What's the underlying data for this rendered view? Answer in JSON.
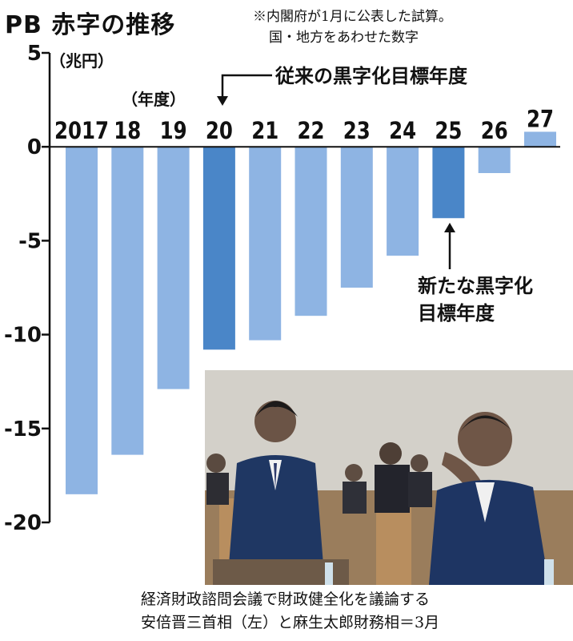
{
  "title": "PB 赤字の推移",
  "note_lines": [
    "※内閣府が1月に公表した試算。",
    "国・地方をあわせた数字"
  ],
  "unit_label": "（兆円）",
  "fiscal_year_label": "（年度）",
  "annotations": {
    "old_target": "従来の黒字化目標年度",
    "new_target_line1": "新たな黒字化",
    "new_target_line2": "目標年度"
  },
  "caption_lines": [
    "経済財政諮問会議で財政健全化を議論する",
    "安倍晋三首相（左）と麻生太郎財務相＝3月"
  ],
  "colors": {
    "bar": "#8eb4e3",
    "highlight": "#4a86c8",
    "axis": "#111111"
  },
  "chart_data": {
    "type": "bar",
    "title": "PB 赤字の推移",
    "ylabel": "（兆円）",
    "xlabel": "（年度）",
    "categories": [
      "2017",
      "18",
      "19",
      "20",
      "21",
      "22",
      "23",
      "24",
      "25",
      "26",
      "27"
    ],
    "values": [
      -18.5,
      -16.4,
      -12.9,
      -10.8,
      -10.3,
      -9.0,
      -7.5,
      -5.8,
      -3.8,
      -1.4,
      0.8
    ],
    "highlighted": [
      "20",
      "25"
    ],
    "ylim": [
      -20,
      5
    ],
    "yticks": [
      5,
      0,
      -5,
      -10,
      -15,
      -20
    ],
    "ytick_labels": [
      "5",
      "0",
      "-5",
      "-10",
      "-15",
      "-20"
    ],
    "grid": false
  }
}
